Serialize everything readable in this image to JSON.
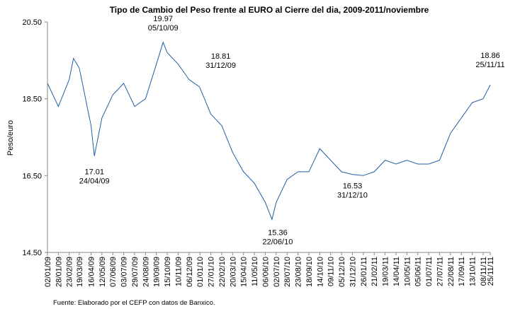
{
  "chart_data": {
    "type": "line",
    "title": "Tipo de Cambio del Peso frente al EURO al Cierre del dia, 2009-2011/noviembre",
    "y_label": "Peso/euro",
    "source": "Fuente: Elaborado por el CEFP con datos de Banxico.",
    "x": [
      "02/01/09",
      "28/01/09",
      "23/02/09",
      "05/03/09",
      "19/03/09",
      "16/04/09",
      "24/04/09",
      "12/05/09",
      "07/06/09",
      "03/07/09",
      "29/07/09",
      "24/08/09",
      "19/09/09",
      "05/10/09",
      "15/10/09",
      "10/11/09",
      "06/12/09",
      "31/12/09",
      "27/01/10",
      "22/02/10",
      "20/03/10",
      "15/04/10",
      "11/05/10",
      "06/06/10",
      "22/06/10",
      "02/07/10",
      "28/07/10",
      "23/08/10",
      "18/09/10",
      "14/10/10",
      "09/11/10",
      "05/12/10",
      "31/12/10",
      "26/01/11",
      "21/02/11",
      "19/03/11",
      "14/04/11",
      "10/05/11",
      "05/06/11",
      "01/07/11",
      "27/07/11",
      "22/08/11",
      "17/09/11",
      "13/10/11",
      "08/11/11",
      "25/11/11"
    ],
    "series": [
      {
        "name": "Peso/euro",
        "color": "#1f5fa8",
        "values": [
          18.9,
          18.3,
          19.0,
          19.55,
          19.3,
          17.8,
          17.01,
          18.0,
          18.6,
          18.9,
          18.3,
          18.5,
          19.4,
          19.97,
          19.7,
          19.4,
          19.0,
          18.81,
          18.1,
          17.8,
          17.1,
          16.6,
          16.3,
          15.8,
          15.36,
          15.8,
          16.4,
          16.6,
          16.6,
          17.2,
          16.9,
          16.6,
          16.53,
          16.5,
          16.6,
          16.9,
          16.8,
          16.9,
          16.8,
          16.8,
          16.9,
          17.6,
          18.0,
          18.4,
          18.5,
          18.86
        ]
      }
    ],
    "annotations": [
      {
        "value": 17.01,
        "date": "24/04/09"
      },
      {
        "value": 19.97,
        "date": "05/10/09"
      },
      {
        "value": 18.81,
        "date": "31/12/09"
      },
      {
        "value": 15.36,
        "date": "22/06/10"
      },
      {
        "value": 16.53,
        "date": "31/12/10"
      },
      {
        "value": 18.86,
        "date": "25/11/11"
      }
    ],
    "xlim": [
      "02/01/09",
      "25/11/11"
    ],
    "xticks": [
      "02/01/09",
      "28/01/09",
      "23/02/09",
      "19/03/09",
      "16/04/09",
      "12/05/09",
      "07/06/09",
      "03/07/09",
      "29/07/09",
      "24/08/09",
      "19/09/09",
      "15/10/09",
      "10/11/09",
      "06/12/09",
      "01/01/10",
      "27/01/10",
      "22/02/10",
      "20/03/10",
      "15/04/10",
      "11/05/10",
      "06/06/10",
      "02/07/10",
      "28/07/10",
      "23/08/10",
      "18/09/10",
      "14/10/10",
      "09/11/10",
      "05/12/10",
      "31/12/10",
      "26/01/11",
      "21/02/11",
      "19/03/11",
      "14/04/11",
      "10/05/11",
      "05/06/11",
      "01/07/11",
      "27/07/11",
      "22/08/11",
      "17/09/11",
      "13/10/11",
      "08/11/11",
      "25/11/11"
    ],
    "ylim": [
      14.5,
      20.5
    ],
    "yticks": [
      {
        "value": 14.5,
        "label": "14.50"
      },
      {
        "value": 16.5,
        "label": "16.50"
      },
      {
        "value": 18.5,
        "label": "18.50"
      },
      {
        "value": 20.5,
        "label": "20.50"
      }
    ]
  }
}
